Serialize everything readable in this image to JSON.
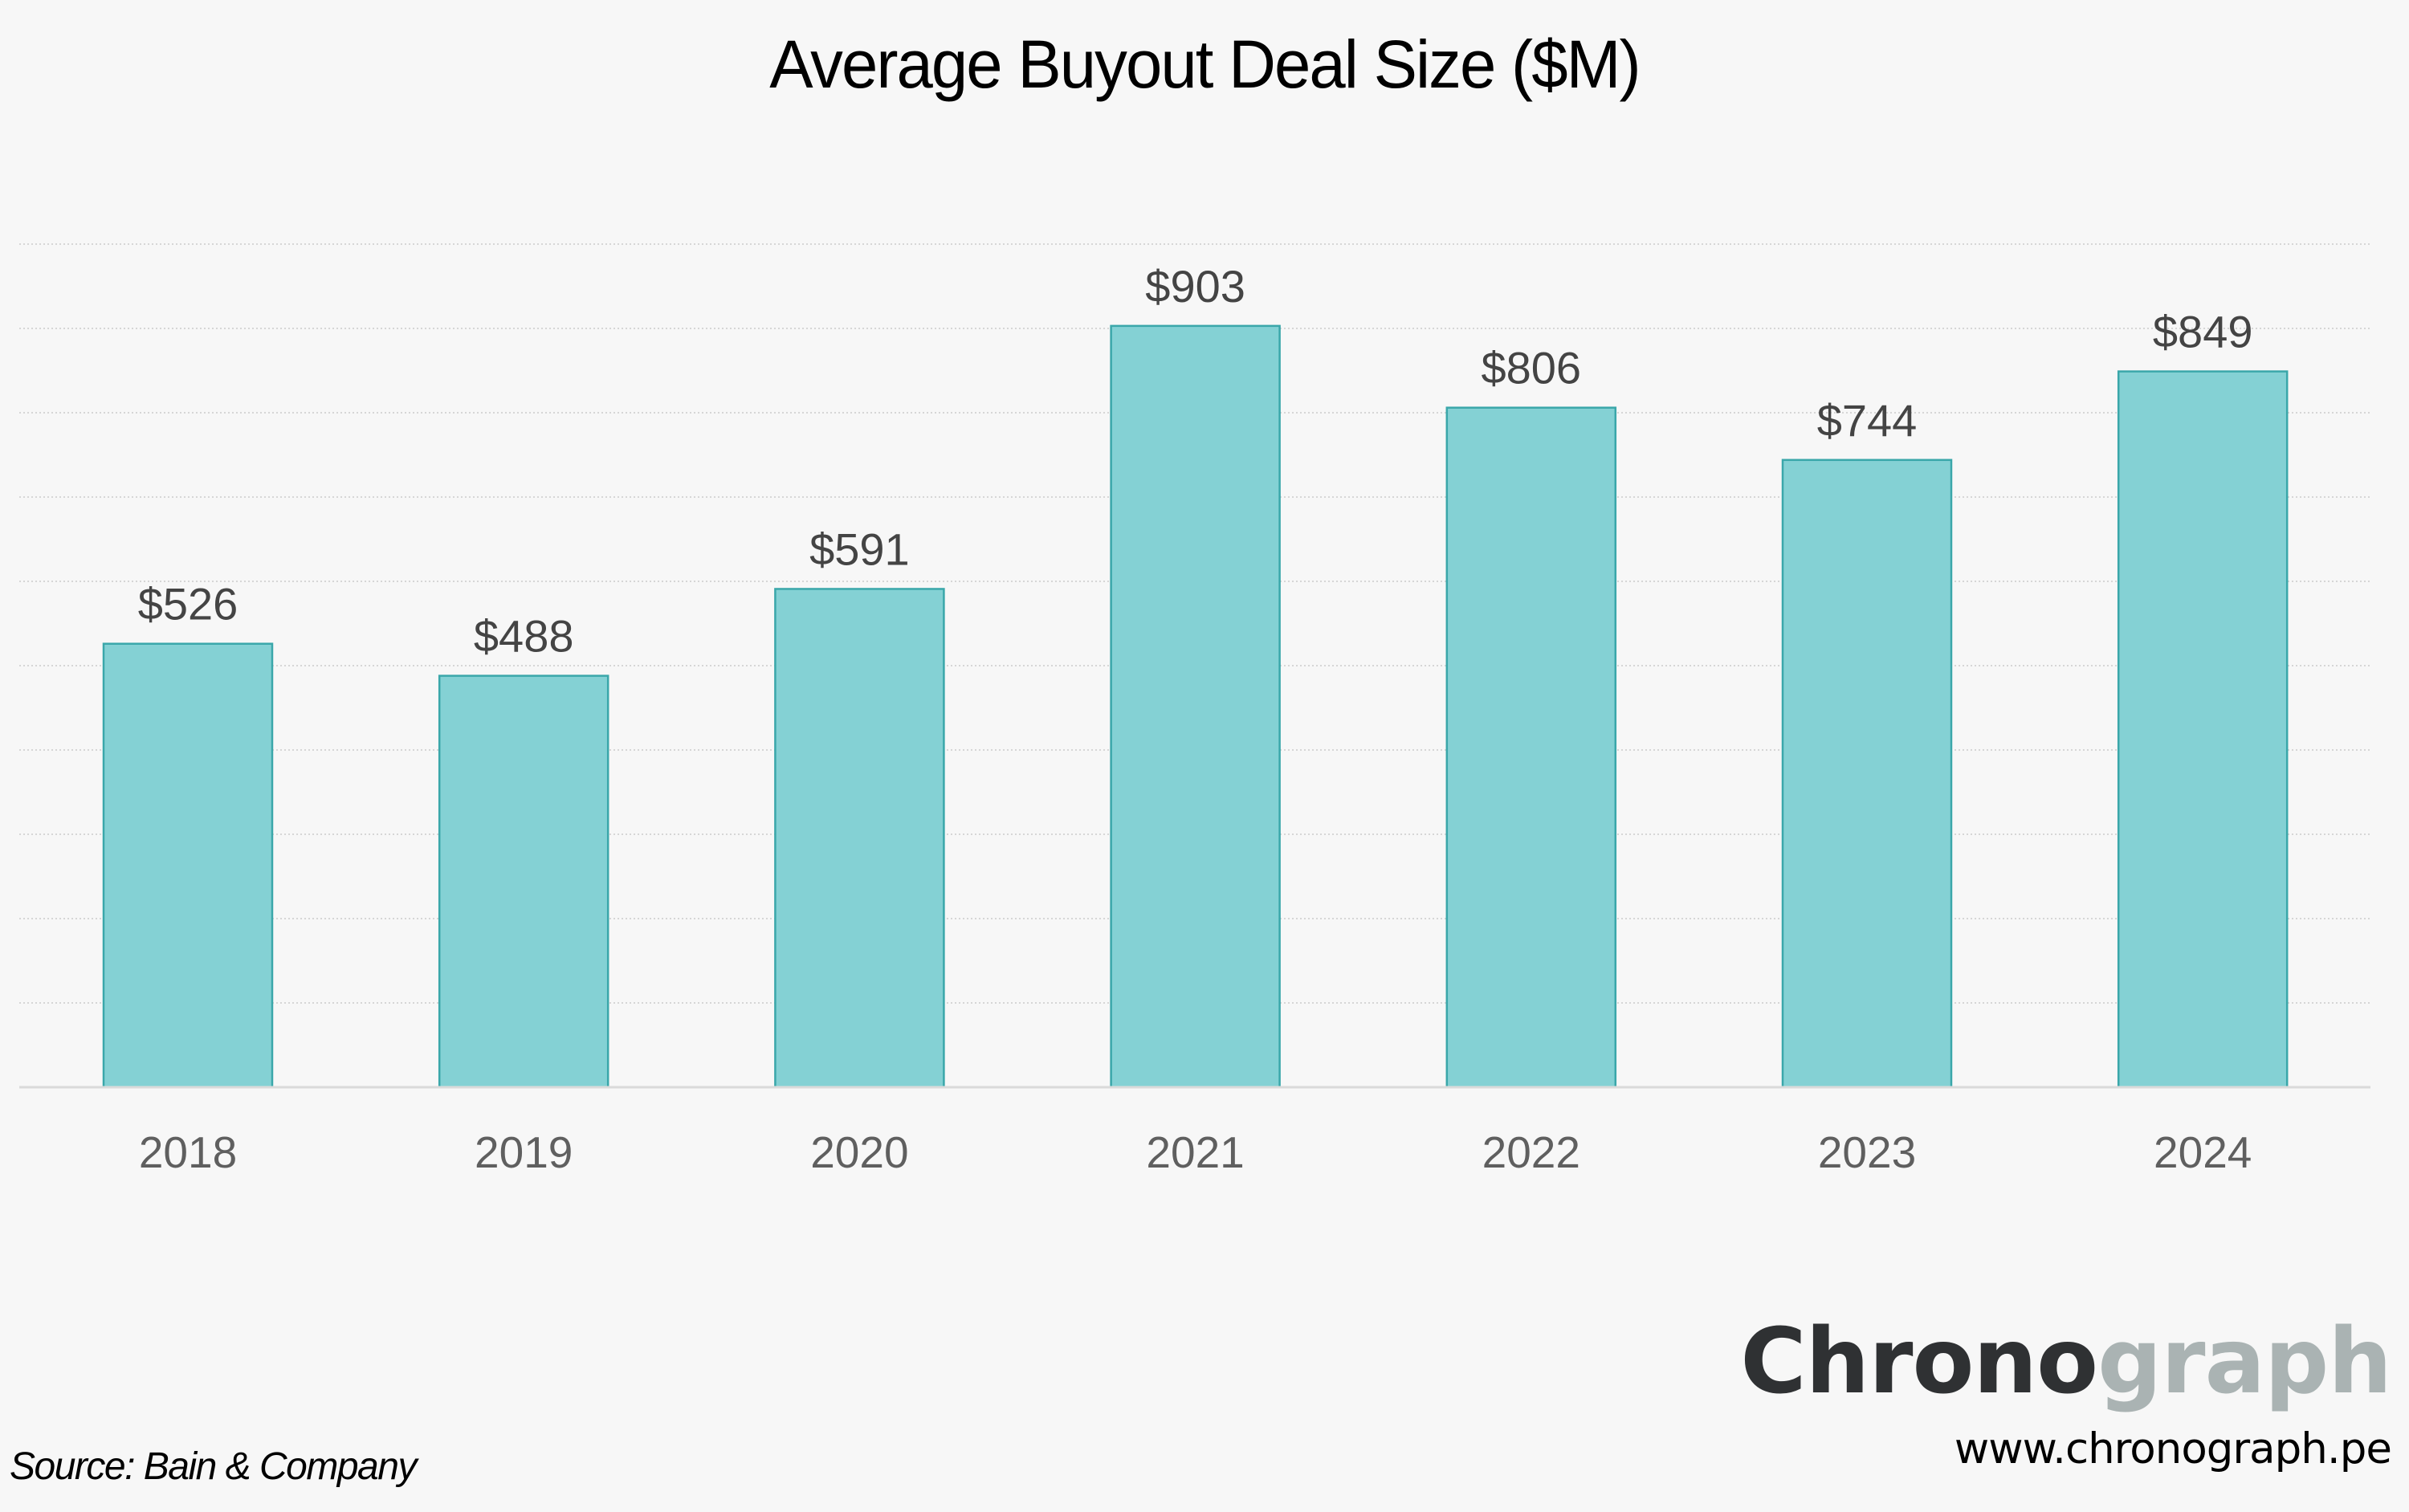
{
  "chart_data": {
    "type": "bar",
    "title": "Average Buyout Deal Size ($M)",
    "xlabel": "",
    "ylabel": "",
    "categories": [
      "2018",
      "2019",
      "2020",
      "2021",
      "2022",
      "2023",
      "2024"
    ],
    "values": [
      526,
      488,
      591,
      903,
      806,
      744,
      849
    ],
    "value_labels": [
      "$526",
      "$488",
      "$591",
      "$903",
      "$806",
      "$744",
      "$849"
    ],
    "ylim": [
      0,
      1000
    ],
    "y_gridline_step": 100,
    "y_tick_labels_shown": false,
    "grid": true,
    "grid_style": "dotted",
    "legend": "none",
    "colors": {
      "bar_fill": "#84d1d4",
      "bar_stroke": "#3aa7aa",
      "background": "#f7f7f7"
    }
  },
  "footer": {
    "source": "Source: Bain & Company",
    "brand_dark": "Chrono",
    "brand_light": "graph",
    "url": "www.chronograph.pe"
  }
}
